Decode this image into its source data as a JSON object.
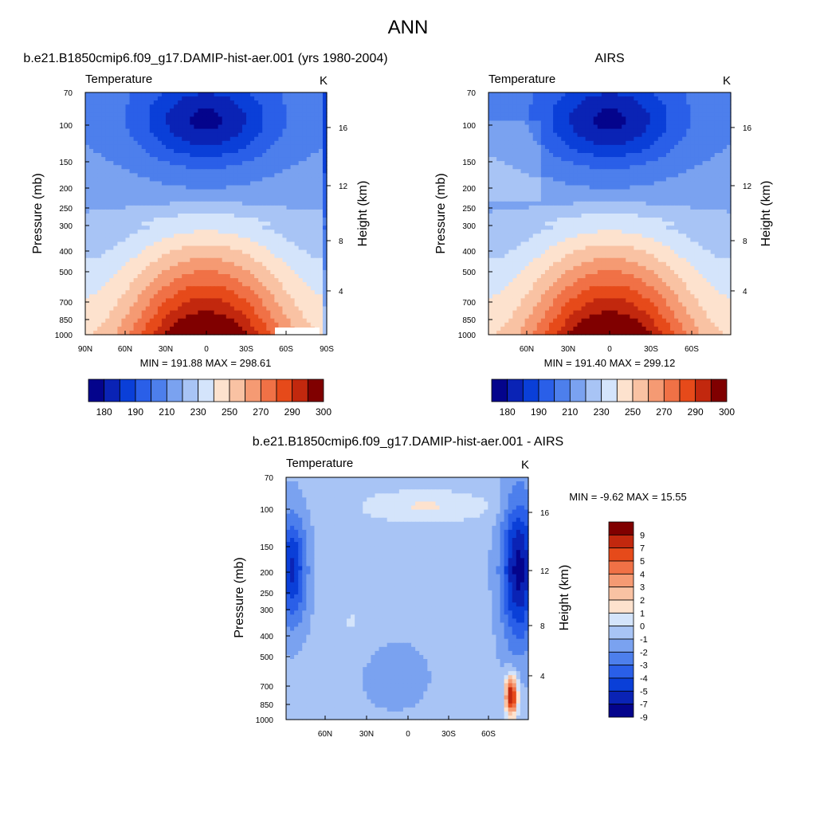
{
  "page_title": "ANN",
  "chart_data": [
    {
      "type": "heatmap",
      "title": "b.e21.B1850cmip6.f09_g17.DAMIP-hist-aer.001 (yrs 1980-2004)",
      "subtitle_left": "Temperature",
      "units": "K",
      "ylabel": "Pressure (mb)",
      "ylabel_right": "Height (km)",
      "y_ticks": [
        "70",
        "100",
        "150",
        "200",
        "250",
        "300",
        "400",
        "500",
        "700",
        "850",
        "1000"
      ],
      "y_ticks_right": [
        "16",
        "12",
        "8",
        "4"
      ],
      "x_ticks": [
        "90N",
        "60N",
        "30N",
        "0",
        "30S",
        "60S",
        "90S"
      ],
      "stats": "MIN = 191.88  MAX = 298.61",
      "colorbar_levels": [
        "180",
        "190",
        "210",
        "230",
        "250",
        "270",
        "290",
        "300"
      ]
    },
    {
      "type": "heatmap",
      "title": "AIRS",
      "subtitle_left": "Temperature",
      "units": "K",
      "ylabel": "Pressure (mb)",
      "ylabel_right": "Height (km)",
      "y_ticks": [
        "70",
        "100",
        "150",
        "200",
        "250",
        "300",
        "400",
        "500",
        "700",
        "850",
        "1000"
      ],
      "y_ticks_right": [
        "16",
        "12",
        "8",
        "4"
      ],
      "x_ticks": [
        "60N",
        "30N",
        "0",
        "30S",
        "60S"
      ],
      "stats": "MIN = 191.40  MAX = 299.12",
      "colorbar_levels": [
        "180",
        "190",
        "210",
        "230",
        "250",
        "270",
        "290",
        "300"
      ]
    },
    {
      "type": "heatmap",
      "title": "b.e21.B1850cmip6.f09_g17.DAMIP-hist-aer.001 - AIRS",
      "subtitle_left": "Temperature",
      "units": "K",
      "ylabel": "Pressure (mb)",
      "ylabel_right": "Height (km)",
      "y_ticks": [
        "70",
        "100",
        "150",
        "200",
        "250",
        "300",
        "400",
        "500",
        "700",
        "850",
        "1000"
      ],
      "y_ticks_right": [
        "16",
        "12",
        "8",
        "4"
      ],
      "x_ticks": [
        "60N",
        "30N",
        "0",
        "30S",
        "60S"
      ],
      "stats": "MIN =  -9.62  MAX =  15.55",
      "colorbar_levels": [
        "9",
        "7",
        "5",
        "4",
        "3",
        "2",
        "1",
        "0",
        "-1",
        "-2",
        "-3",
        "-4",
        "-5",
        "-7",
        "-9"
      ]
    }
  ],
  "colors": {
    "abs_palette": [
      "#04048c",
      "#0a23b5",
      "#0a3fd8",
      "#2a5fe8",
      "#4d7fec",
      "#7aa2f0",
      "#a8c4f5",
      "#d4e4fb",
      "#fde2ce",
      "#f9c2a3",
      "#f59a73",
      "#f07146",
      "#e64a1a",
      "#c2280e",
      "#800000"
    ],
    "diff_palette": [
      "#04048c",
      "#0a23b5",
      "#0a3fd8",
      "#2a5fe8",
      "#4d7fec",
      "#7aa2f0",
      "#a8c4f5",
      "#d4e4fb",
      "#fde2ce",
      "#f9c2a3",
      "#f59a73",
      "#f07146",
      "#e64a1a",
      "#c2280e",
      "#800000"
    ]
  }
}
